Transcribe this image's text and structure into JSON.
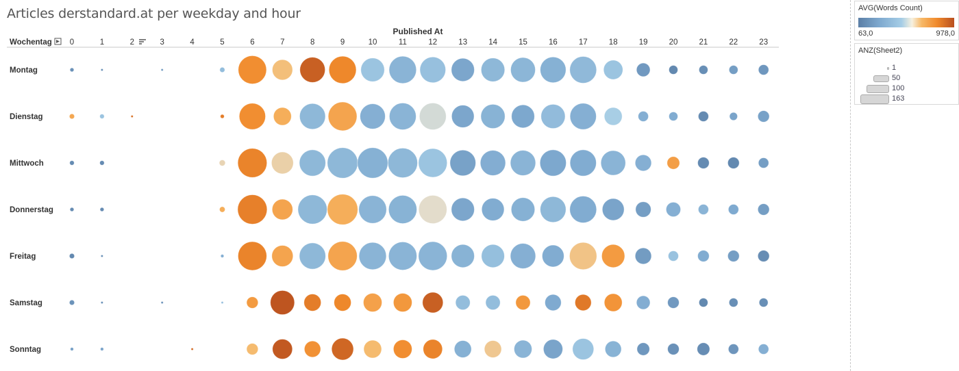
{
  "chart_data": {
    "type": "scatter",
    "title": "Articles derstandard.at per weekday and hour",
    "x_axis_title": "Published At",
    "row_header": "Wochentag",
    "hours": [
      "0",
      "1",
      "2",
      "3",
      "4",
      "5",
      "6",
      "7",
      "8",
      "9",
      "10",
      "11",
      "12",
      "13",
      "14",
      "15",
      "16",
      "17",
      "18",
      "19",
      "20",
      "21",
      "22",
      "23"
    ],
    "weekdays": [
      "Montag",
      "Dienstag",
      "Mittwoch",
      "Donnerstag",
      "Freitag",
      "Samstag",
      "Sonntag"
    ],
    "color_measure": "AVG(Words Count)",
    "color_range": [
      63.0,
      978.0
    ],
    "color_min_label": "63,0",
    "color_max_label": "978,0",
    "size_measure": "ANZ(Sheet2)",
    "size_legend": [
      {
        "value": 1,
        "label": "1"
      },
      {
        "value": 50,
        "label": "50"
      },
      {
        "value": 100,
        "label": "100"
      },
      {
        "value": 163,
        "label": "163"
      }
    ],
    "colors": {
      "low": "#5b7fa6",
      "mid": "#a5cde6",
      "neutral": "#f7f1df",
      "high": "#f08a2c",
      "max": "#b84f1f"
    },
    "counts": [
      [
        3,
        1,
        null,
        1,
        null,
        5,
        150,
        78,
        120,
        140,
        105,
        140,
        125,
        100,
        105,
        115,
        125,
        135,
        70,
        35,
        15,
        15,
        15,
        20
      ],
      [
        5,
        4,
        1,
        null,
        null,
        3,
        130,
        60,
        125,
        155,
        120,
        135,
        135,
        95,
        110,
        100,
        110,
        130,
        60,
        20,
        15,
        20,
        12,
        25
      ],
      [
        4,
        4,
        null,
        null,
        null,
        7,
        160,
        90,
        130,
        175,
        175,
        165,
        155,
        125,
        120,
        120,
        130,
        130,
        115,
        50,
        30,
        25,
        25,
        20
      ],
      [
        3,
        3,
        null,
        null,
        null,
        6,
        163,
        80,
        160,
        175,
        145,
        150,
        150,
        100,
        95,
        105,
        125,
        135,
        90,
        45,
        40,
        20,
        20,
        25
      ],
      [
        5,
        1,
        null,
        null,
        null,
        2,
        155,
        85,
        130,
        160,
        140,
        150,
        155,
        100,
        100,
        120,
        90,
        140,
        100,
        50,
        20,
        25,
        25,
        25
      ],
      [
        5,
        1,
        null,
        1,
        null,
        1,
        25,
        110,
        55,
        55,
        65,
        65,
        80,
        40,
        40,
        40,
        50,
        50,
        60,
        35,
        25,
        15,
        15,
        15
      ],
      [
        2,
        2,
        null,
        null,
        1,
        null,
        25,
        75,
        50,
        90,
        60,
        65,
        70,
        55,
        55,
        60,
        70,
        85,
        50,
        30,
        25,
        30,
        20,
        20
      ]
    ],
    "avg_words": [
      [
        150,
        150,
        null,
        200,
        null,
        380,
        800,
        650,
        930,
        820,
        420,
        330,
        400,
        250,
        350,
        340,
        310,
        360,
        420,
        190,
        110,
        140,
        210,
        180
      ],
      [
        720,
        420,
        880,
        null,
        null,
        850,
        800,
        700,
        350,
        730,
        300,
        330,
        550,
        250,
        320,
        260,
        370,
        300,
        480,
        300,
        280,
        120,
        240,
        230
      ],
      [
        120,
        120,
        null,
        null,
        null,
        600,
        830,
        610,
        350,
        350,
        310,
        350,
        420,
        230,
        290,
        330,
        260,
        280,
        330,
        300,
        750,
        120,
        110,
        210
      ],
      [
        120,
        120,
        null,
        null,
        null,
        700,
        840,
        730,
        350,
        700,
        330,
        320,
        580,
        250,
        280,
        310,
        350,
        280,
        240,
        210,
        300,
        330,
        270,
        210
      ],
      [
        110,
        150,
        null,
        null,
        null,
        300,
        830,
        730,
        350,
        730,
        330,
        330,
        330,
        320,
        390,
        300,
        280,
        640,
        760,
        200,
        410,
        280,
        210,
        130
      ],
      [
        160,
        150,
        null,
        160,
        null,
        400,
        760,
        960,
        850,
        820,
        740,
        770,
        930,
        380,
        380,
        770,
        270,
        860,
        780,
        290,
        190,
        110,
        140,
        140
      ],
      [
        220,
        240,
        null,
        null,
        900,
        null,
        660,
        950,
        790,
        910,
        660,
        800,
        830,
        310,
        630,
        330,
        240,
        420,
        320,
        180,
        150,
        130,
        170,
        300
      ]
    ]
  }
}
